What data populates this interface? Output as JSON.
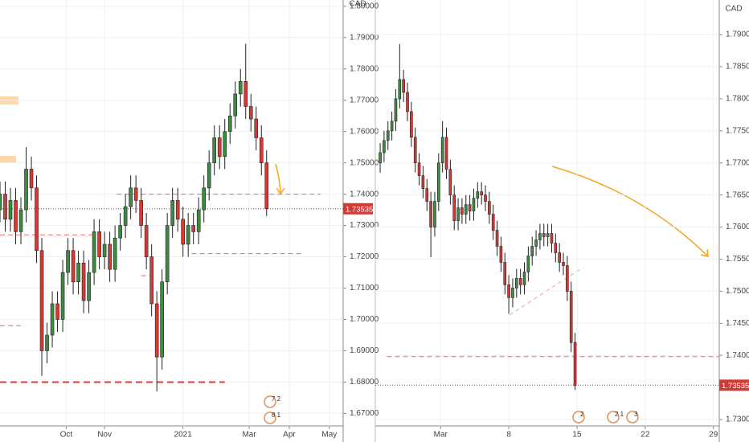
{
  "chart_data": [
    {
      "type": "candlestick",
      "currency": "CAD",
      "x": [
        0,
        3,
        6,
        9,
        12,
        15,
        18,
        21,
        24,
        27,
        30,
        33,
        36,
        39,
        42,
        45,
        48,
        51,
        54,
        57,
        60,
        63,
        66,
        69,
        72,
        75,
        78,
        81,
        84,
        87,
        90,
        93,
        96,
        99,
        102,
        105,
        108,
        111,
        114,
        117,
        120,
        123,
        126,
        129,
        132,
        135,
        138,
        141,
        144,
        147,
        150,
        153
      ],
      "open": [
        1.735,
        1.74,
        1.732,
        1.738,
        1.728,
        1.735,
        1.748,
        1.742,
        1.722,
        1.69,
        1.695,
        1.705,
        1.7,
        1.715,
        1.722,
        1.712,
        1.718,
        1.706,
        1.715,
        1.728,
        1.72,
        1.724,
        1.716,
        1.726,
        1.73,
        1.736,
        1.742,
        1.738,
        1.73,
        1.72,
        1.705,
        1.688,
        1.712,
        1.73,
        1.738,
        1.732,
        1.724,
        1.73,
        1.728,
        1.735,
        1.742,
        1.75,
        1.758,
        1.752,
        1.76,
        1.765,
        1.772,
        1.776,
        1.768,
        1.764,
        1.758,
        1.75
      ],
      "high": [
        1.744,
        1.744,
        1.742,
        1.742,
        1.739,
        1.755,
        1.752,
        1.746,
        1.726,
        1.699,
        1.709,
        1.709,
        1.719,
        1.726,
        1.726,
        1.722,
        1.722,
        1.719,
        1.732,
        1.732,
        1.728,
        1.728,
        1.73,
        1.734,
        1.74,
        1.746,
        1.746,
        1.742,
        1.734,
        1.724,
        1.709,
        1.716,
        1.734,
        1.742,
        1.742,
        1.736,
        1.734,
        1.734,
        1.739,
        1.746,
        1.754,
        1.762,
        1.762,
        1.764,
        1.769,
        1.776,
        1.78,
        1.788,
        1.772,
        1.768,
        1.762,
        1.754
      ],
      "low": [
        1.731,
        1.728,
        1.728,
        1.724,
        1.724,
        1.731,
        1.738,
        1.718,
        1.682,
        1.686,
        1.691,
        1.696,
        1.696,
        1.711,
        1.708,
        1.708,
        1.702,
        1.702,
        1.711,
        1.716,
        1.716,
        1.712,
        1.712,
        1.722,
        1.726,
        1.732,
        1.734,
        1.726,
        1.716,
        1.701,
        1.677,
        1.684,
        1.708,
        1.726,
        1.728,
        1.72,
        1.72,
        1.724,
        1.724,
        1.731,
        1.738,
        1.746,
        1.748,
        1.748,
        1.756,
        1.761,
        1.768,
        1.764,
        1.76,
        1.754,
        1.746,
        1.733
      ],
      "close": [
        1.74,
        1.732,
        1.738,
        1.728,
        1.735,
        1.748,
        1.742,
        1.722,
        1.69,
        1.695,
        1.705,
        1.7,
        1.715,
        1.722,
        1.712,
        1.718,
        1.706,
        1.715,
        1.728,
        1.72,
        1.724,
        1.716,
        1.726,
        1.73,
        1.736,
        1.742,
        1.738,
        1.73,
        1.72,
        1.705,
        1.688,
        1.712,
        1.73,
        1.738,
        1.732,
        1.724,
        1.73,
        1.728,
        1.735,
        1.742,
        1.75,
        1.758,
        1.752,
        1.76,
        1.765,
        1.772,
        1.776,
        1.768,
        1.764,
        1.758,
        1.75,
        1.73535
      ],
      "up_color": "#3d8b40",
      "down_color": "#d33a36",
      "xlim": [
        0,
        196
      ],
      "xticks": [
        {
          "value": 38,
          "label": "Oct"
        },
        {
          "value": 60,
          "label": "Nov"
        },
        {
          "value": 105,
          "label": "2021"
        },
        {
          "value": 143,
          "label": "Mar"
        },
        {
          "value": 166,
          "label": "Apr"
        },
        {
          "value": 189,
          "label": "May"
        }
      ],
      "ylim": [
        1.666,
        1.802
      ],
      "yticks": [
        {
          "value": 1.67,
          "label": "1.67000"
        },
        {
          "value": 1.68,
          "label": "1.68000"
        },
        {
          "value": 1.69,
          "label": "1.69000"
        },
        {
          "value": 1.7,
          "label": "1.70000"
        },
        {
          "value": 1.71,
          "label": "1.71000"
        },
        {
          "value": 1.72,
          "label": "1.72000"
        },
        {
          "value": 1.73,
          "label": "1.73000"
        },
        {
          "value": 1.74,
          "label": "1.74000"
        },
        {
          "value": 1.75,
          "label": "1.75000"
        },
        {
          "value": 1.76,
          "label": "1.76000"
        },
        {
          "value": 1.77,
          "label": "1.77000"
        },
        {
          "value": 1.78,
          "label": "1.78000"
        },
        {
          "value": 1.79,
          "label": "1.79000"
        },
        {
          "value": 1.8,
          "label": "1.80000"
        }
      ],
      "grid": true,
      "levels": [
        {
          "value": 1.74,
          "from": 67,
          "to": 184,
          "weight": 1
        },
        {
          "value": 1.727,
          "from": 0,
          "to": 55,
          "weight": 1
        },
        {
          "value": 1.721,
          "from": 110,
          "to": 173,
          "weight": 1
        },
        {
          "value": 1.714,
          "from": 81,
          "to": 86,
          "weight": 1
        },
        {
          "value": 1.698,
          "from": 0,
          "to": 14,
          "weight": 1
        },
        {
          "value": 1.68,
          "from": 0,
          "to": 129,
          "weight": 2
        }
      ],
      "level_color": "#e53935",
      "event_labels": [
        "7 2",
        "8 1"
      ]
    },
    {
      "type": "candlestick",
      "currency": "CAD",
      "x": [
        -5.2,
        -4.8,
        -4.4,
        -4.0,
        -3.6,
        -3.2,
        -2.8,
        -2.4,
        -2.0,
        -1.6,
        -1.2,
        -0.8,
        -0.4,
        0.0,
        0.4,
        0.8,
        1.2,
        1.6,
        2.0,
        2.4,
        2.8,
        3.2,
        3.6,
        4.0,
        4.4,
        4.8,
        5.2,
        5.6,
        6.0,
        6.4,
        6.8,
        7.2,
        7.6,
        8.0,
        8.4,
        8.8,
        9.2,
        9.6,
        10.0,
        10.4,
        10.8,
        11.2,
        11.6,
        12.0,
        12.4,
        12.8,
        13.2,
        13.6,
        14.0,
        14.4,
        14.8
      ],
      "open": [
        1.77,
        1.7716,
        1.7735,
        1.775,
        1.7765,
        1.78,
        1.783,
        1.781,
        1.778,
        1.774,
        1.77,
        1.768,
        1.766,
        1.764,
        1.76,
        1.764,
        1.77,
        1.774,
        1.769,
        1.765,
        1.761,
        1.763,
        1.762,
        1.7635,
        1.7625,
        1.7645,
        1.7655,
        1.765,
        1.764,
        1.762,
        1.7595,
        1.757,
        1.7545,
        1.751,
        1.749,
        1.7505,
        1.752,
        1.751,
        1.753,
        1.7555,
        1.757,
        1.758,
        1.759,
        1.7585,
        1.759,
        1.7575,
        1.756,
        1.7545,
        1.754,
        1.75,
        1.742
      ],
      "high": [
        1.7731,
        1.775,
        1.7765,
        1.778,
        1.7815,
        1.7885,
        1.7845,
        1.7825,
        1.7795,
        1.7755,
        1.7715,
        1.7695,
        1.7675,
        1.7655,
        1.7655,
        1.7715,
        1.7765,
        1.7755,
        1.7705,
        1.7665,
        1.7645,
        1.7645,
        1.765,
        1.765,
        1.766,
        1.767,
        1.767,
        1.7665,
        1.7655,
        1.7635,
        1.761,
        1.7585,
        1.756,
        1.7525,
        1.752,
        1.7535,
        1.7535,
        1.7545,
        1.757,
        1.7585,
        1.7595,
        1.7605,
        1.7605,
        1.7605,
        1.7605,
        1.759,
        1.7575,
        1.756,
        1.7555,
        1.7515,
        1.7435
      ],
      "low": [
        1.7685,
        1.7701,
        1.772,
        1.7735,
        1.775,
        1.7785,
        1.7795,
        1.7765,
        1.7725,
        1.7685,
        1.7665,
        1.7645,
        1.7625,
        1.7553,
        1.7585,
        1.7625,
        1.7685,
        1.7675,
        1.7635,
        1.7595,
        1.7595,
        1.7605,
        1.7605,
        1.761,
        1.761,
        1.763,
        1.7635,
        1.7625,
        1.7605,
        1.758,
        1.7555,
        1.753,
        1.7495,
        1.7465,
        1.7475,
        1.749,
        1.7495,
        1.7495,
        1.7515,
        1.754,
        1.7555,
        1.7565,
        1.757,
        1.757,
        1.756,
        1.7545,
        1.753,
        1.7525,
        1.7485,
        1.7405,
        1.7346
      ],
      "close": [
        1.7716,
        1.7735,
        1.775,
        1.7765,
        1.78,
        1.783,
        1.781,
        1.778,
        1.774,
        1.77,
        1.768,
        1.766,
        1.764,
        1.76,
        1.764,
        1.77,
        1.774,
        1.769,
        1.765,
        1.761,
        1.763,
        1.762,
        1.7635,
        1.7625,
        1.7645,
        1.7655,
        1.765,
        1.764,
        1.762,
        1.7595,
        1.757,
        1.7545,
        1.751,
        1.749,
        1.7505,
        1.752,
        1.751,
        1.753,
        1.7555,
        1.757,
        1.758,
        1.759,
        1.7585,
        1.759,
        1.7575,
        1.756,
        1.7545,
        1.754,
        1.75,
        1.742,
        1.73535
      ],
      "up_color": "#3d8b40",
      "down_color": "#d33a36",
      "xlim": [
        -5.7,
        29.6
      ],
      "xticks": [
        {
          "value": 1,
          "label": "Mar"
        },
        8,
        15,
        22,
        29
      ],
      "ylim": [
        1.729,
        1.7954
      ],
      "yticks": [
        {
          "value": 1.73,
          "label": "1.73000"
        },
        {
          "value": 1.735,
          "label": "1.73500"
        },
        {
          "value": 1.74,
          "label": "1.74000"
        },
        {
          "value": 1.745,
          "label": "1.74500"
        },
        {
          "value": 1.75,
          "label": "1.75000"
        },
        {
          "value": 1.755,
          "label": "1.75500"
        },
        {
          "value": 1.76,
          "label": "1.76000"
        },
        {
          "value": 1.765,
          "label": "1.76500"
        },
        {
          "value": 1.77,
          "label": "1.77000"
        },
        {
          "value": 1.775,
          "label": "1.77500"
        },
        {
          "value": 1.78,
          "label": "1.78000"
        },
        {
          "value": 1.785,
          "label": "1.78500"
        },
        {
          "value": 1.79,
          "label": "1.79000"
        }
      ],
      "grid": true,
      "levels": [
        {
          "value": 1.7398,
          "from": -4.5,
          "to": 29.6,
          "weight": 1
        }
      ],
      "level_color": "#e53935",
      "event_labels": [
        "2",
        "2 1",
        "3"
      ]
    }
  ]
}
